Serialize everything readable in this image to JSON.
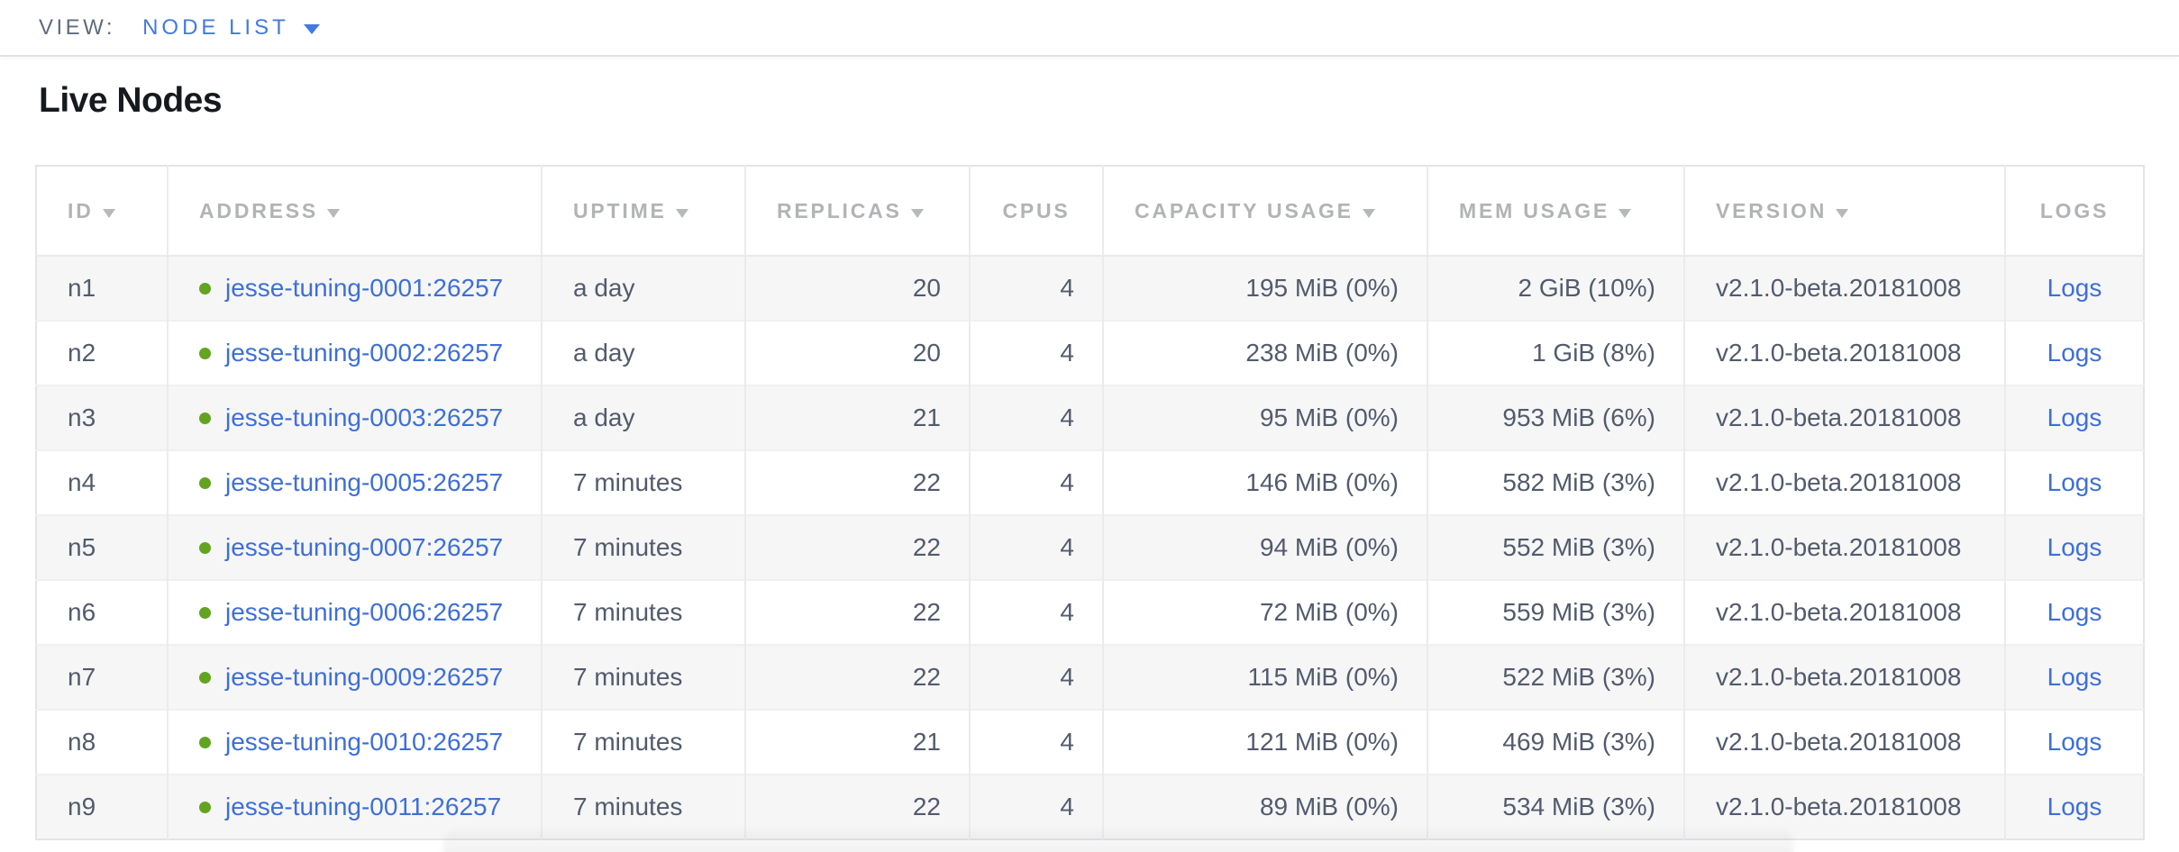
{
  "view_bar": {
    "label": "VIEW:",
    "selected": "NODE LIST"
  },
  "page": {
    "title": "Live Nodes"
  },
  "colors": {
    "accent_blue": "#4379e2",
    "link_blue": "#3e6fd8",
    "healthy_green": "#62a420",
    "header_gray": "#b1b3b6",
    "cell_text": "#525b6d"
  },
  "icons": {
    "dropdown_caret": "triangle-down",
    "sort_indicator": "triangle-down",
    "node_live_status": "green-dot"
  },
  "table": {
    "columns": [
      {
        "key": "id",
        "label": "ID",
        "sortable": true,
        "align": "left",
        "header_align": "left"
      },
      {
        "key": "address",
        "label": "ADDRESS",
        "sortable": true,
        "align": "left",
        "header_align": "left"
      },
      {
        "key": "uptime",
        "label": "UPTIME",
        "sortable": true,
        "align": "left",
        "header_align": "left"
      },
      {
        "key": "replicas",
        "label": "REPLICAS",
        "sortable": true,
        "align": "right",
        "header_align": "left"
      },
      {
        "key": "cpus",
        "label": "CPUS",
        "sortable": false,
        "align": "right",
        "header_align": "center"
      },
      {
        "key": "capacity",
        "label": "CAPACITY USAGE",
        "sortable": true,
        "align": "right",
        "header_align": "left"
      },
      {
        "key": "mem",
        "label": "MEM USAGE",
        "sortable": true,
        "align": "right",
        "header_align": "left"
      },
      {
        "key": "version",
        "label": "VERSION",
        "sortable": true,
        "align": "left",
        "header_align": "left"
      },
      {
        "key": "logs",
        "label": "LOGS",
        "sortable": false,
        "align": "center",
        "header_align": "center"
      }
    ],
    "rows": [
      {
        "id": "n1",
        "address": "jesse-tuning-0001:26257",
        "uptime": "a day",
        "replicas": "20",
        "cpus": "4",
        "capacity": "195 MiB (0%)",
        "mem": "2 GiB (10%)",
        "version": "v2.1.0-beta.20181008",
        "logs": "Logs"
      },
      {
        "id": "n2",
        "address": "jesse-tuning-0002:26257",
        "uptime": "a day",
        "replicas": "20",
        "cpus": "4",
        "capacity": "238 MiB (0%)",
        "mem": "1 GiB (8%)",
        "version": "v2.1.0-beta.20181008",
        "logs": "Logs"
      },
      {
        "id": "n3",
        "address": "jesse-tuning-0003:26257",
        "uptime": "a day",
        "replicas": "21",
        "cpus": "4",
        "capacity": "95 MiB (0%)",
        "mem": "953 MiB (6%)",
        "version": "v2.1.0-beta.20181008",
        "logs": "Logs"
      },
      {
        "id": "n4",
        "address": "jesse-tuning-0005:26257",
        "uptime": "7 minutes",
        "replicas": "22",
        "cpus": "4",
        "capacity": "146 MiB (0%)",
        "mem": "582 MiB (3%)",
        "version": "v2.1.0-beta.20181008",
        "logs": "Logs"
      },
      {
        "id": "n5",
        "address": "jesse-tuning-0007:26257",
        "uptime": "7 minutes",
        "replicas": "22",
        "cpus": "4",
        "capacity": "94 MiB (0%)",
        "mem": "552 MiB (3%)",
        "version": "v2.1.0-beta.20181008",
        "logs": "Logs"
      },
      {
        "id": "n6",
        "address": "jesse-tuning-0006:26257",
        "uptime": "7 minutes",
        "replicas": "22",
        "cpus": "4",
        "capacity": "72 MiB (0%)",
        "mem": "559 MiB (3%)",
        "version": "v2.1.0-beta.20181008",
        "logs": "Logs"
      },
      {
        "id": "n7",
        "address": "jesse-tuning-0009:26257",
        "uptime": "7 minutes",
        "replicas": "22",
        "cpus": "4",
        "capacity": "115 MiB (0%)",
        "mem": "522 MiB (3%)",
        "version": "v2.1.0-beta.20181008",
        "logs": "Logs"
      },
      {
        "id": "n8",
        "address": "jesse-tuning-0010:26257",
        "uptime": "7 minutes",
        "replicas": "21",
        "cpus": "4",
        "capacity": "121 MiB (0%)",
        "mem": "469 MiB (3%)",
        "version": "v2.1.0-beta.20181008",
        "logs": "Logs"
      },
      {
        "id": "n9",
        "address": "jesse-tuning-0011:26257",
        "uptime": "7 minutes",
        "replicas": "22",
        "cpus": "4",
        "capacity": "89 MiB (0%)",
        "mem": "534 MiB (3%)",
        "version": "v2.1.0-beta.20181008",
        "logs": "Logs"
      }
    ]
  }
}
